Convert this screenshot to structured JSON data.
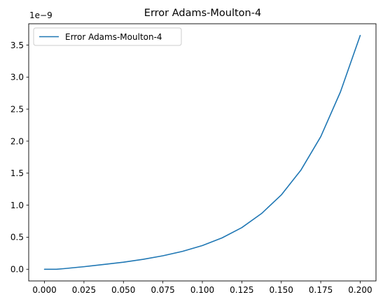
{
  "chart_data": {
    "type": "line",
    "title": "Error Adams-Moulton-4",
    "xlabel": "",
    "ylabel": "",
    "y_offset_label": "1e−9",
    "xlim": [
      -0.01,
      0.21
    ],
    "ylim": [
      -0.1825,
      3.8325
    ],
    "xticks": [
      0.0,
      0.025,
      0.05,
      0.075,
      0.1,
      0.125,
      0.15,
      0.175,
      0.2
    ],
    "xtick_labels": [
      "0.000",
      "0.025",
      "0.050",
      "0.075",
      "0.100",
      "0.125",
      "0.150",
      "0.175",
      "0.200"
    ],
    "yticks": [
      0.0,
      0.5,
      1.0,
      1.5,
      2.0,
      2.5,
      3.0,
      3.5
    ],
    "ytick_labels": [
      "0.0",
      "0.5",
      "1.0",
      "1.5",
      "2.0",
      "2.5",
      "3.0",
      "3.5"
    ],
    "grid": false,
    "legend_position": "top-left",
    "series": [
      {
        "name": "Error Adams-Moulton-4",
        "color": "#1f77b4",
        "x": [
          0.0,
          0.0075,
          0.0125,
          0.025,
          0.0375,
          0.05,
          0.0625,
          0.075,
          0.0875,
          0.1,
          0.1125,
          0.125,
          0.1375,
          0.15,
          0.1625,
          0.175,
          0.1875,
          0.2
        ],
        "y": [
          0.0,
          0.0,
          0.01,
          0.04,
          0.075,
          0.11,
          0.155,
          0.21,
          0.28,
          0.37,
          0.49,
          0.65,
          0.87,
          1.16,
          1.55,
          2.07,
          2.77,
          3.65
        ]
      }
    ]
  }
}
